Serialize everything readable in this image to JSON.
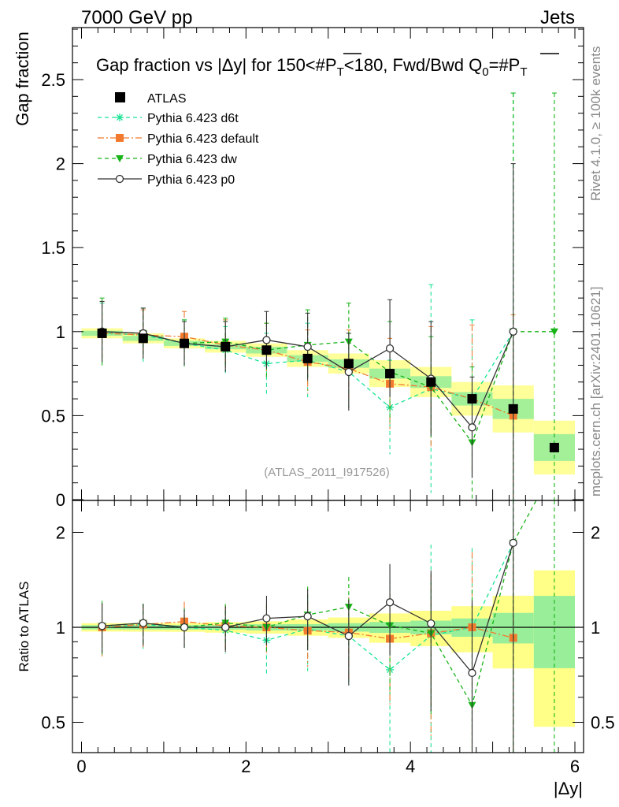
{
  "header": {
    "left": "7000 GeV pp",
    "right": "Jets"
  },
  "side_labels": {
    "rivet": "Rivet 4.1.0, ≥ 100k events",
    "mcplots": "mcplots.cern.ch [arXiv:2401.10621]"
  },
  "watermark": "(ATLAS_2011_I917526)",
  "chart_data": {
    "type": "scatter",
    "title": "Gap fraction vs |Δy| for 150<#P̅T<180, Fwd/Bwd Q0=#P̅T",
    "title_parts": {
      "a": "Gap fraction vs |",
      "b": "Δy",
      "c": "| for 150<#",
      "d": "P",
      "e": "T",
      "f": "<180, Fwd/Bwd Q",
      "g": "0",
      "h": "=#",
      "i": "P",
      "j": "T"
    },
    "xlabel": "|Δy|",
    "ylabel": "Gap fraction",
    "ratio_ylabel": "Ratio to ATLAS",
    "xlim": [
      -0.1,
      6.1
    ],
    "ylim": [
      0,
      2.85
    ],
    "ratio_ylim": [
      0.42,
      2.35
    ],
    "x_ticks": [
      "0",
      "2",
      "4",
      "6"
    ],
    "y_ticks": [
      "0",
      "0.5",
      "1",
      "1.5",
      "2",
      "2.5"
    ],
    "ratio_ticks": [
      "0.5",
      "1",
      "2"
    ],
    "x": [
      0.25,
      0.75,
      1.25,
      1.75,
      2.25,
      2.75,
      3.25,
      3.75,
      4.25,
      4.75,
      5.25,
      5.75
    ],
    "data": {
      "name": "ATLAS",
      "values": [
        0.99,
        0.96,
        0.93,
        0.91,
        0.89,
        0.84,
        0.81,
        0.75,
        0.7,
        0.6,
        0.54,
        0.31
      ],
      "band_inner": [
        0.015,
        0.015,
        0.015,
        0.015,
        0.02,
        0.02,
        0.025,
        0.03,
        0.035,
        0.04,
        0.06,
        0.08
      ],
      "band_outer": [
        0.03,
        0.03,
        0.03,
        0.035,
        0.04,
        0.05,
        0.06,
        0.08,
        0.09,
        0.1,
        0.14,
        0.16
      ]
    },
    "series": [
      {
        "name": "Pythia 6.423 d6t",
        "color": "#19e394",
        "dash": "5,4",
        "marker": "star",
        "values": [
          0.99,
          0.98,
          0.93,
          0.89,
          0.81,
          0.83,
          0.76,
          0.55,
          0.66,
          0.6,
          1.0,
          null
        ],
        "errors": [
          0.18,
          0.16,
          0.14,
          0.14,
          0.18,
          0.22,
          0.23,
          0.28,
          0.62,
          0.47,
          1.42,
          null
        ]
      },
      {
        "name": "Pythia 6.423 default",
        "color": "#f27a2e",
        "dash": "8,3,2,3",
        "marker": "square",
        "values": [
          0.99,
          0.98,
          0.97,
          0.92,
          0.89,
          0.82,
          0.78,
          0.69,
          0.67,
          0.6,
          0.5,
          null
        ],
        "errors": [
          0.19,
          0.15,
          0.15,
          0.15,
          0.16,
          0.19,
          0.23,
          0.27,
          0.36,
          0.44,
          0.6,
          null
        ]
      },
      {
        "name": "Pythia 6.423 dw",
        "color": "#17b317",
        "dash": "5,4",
        "marker": "triangle",
        "values": [
          1.0,
          0.99,
          0.93,
          0.94,
          0.89,
          0.92,
          0.94,
          0.76,
          0.67,
          0.34,
          1.0,
          1.0
        ],
        "errors": [
          0.2,
          0.15,
          0.14,
          0.14,
          0.16,
          0.21,
          0.23,
          0.3,
          0.3,
          0.45,
          1.42,
          1.42
        ]
      },
      {
        "name": "Pythia 6.423 p0",
        "color": "#333333",
        "dash": "",
        "marker": "circle",
        "values": [
          1.0,
          0.99,
          0.93,
          0.91,
          0.95,
          0.91,
          0.76,
          0.9,
          0.72,
          0.43,
          1.0,
          null
        ],
        "errors": [
          0.18,
          0.15,
          0.13,
          0.15,
          0.17,
          0.2,
          0.23,
          0.29,
          0.34,
          0.3,
          1.0,
          null
        ]
      }
    ]
  }
}
